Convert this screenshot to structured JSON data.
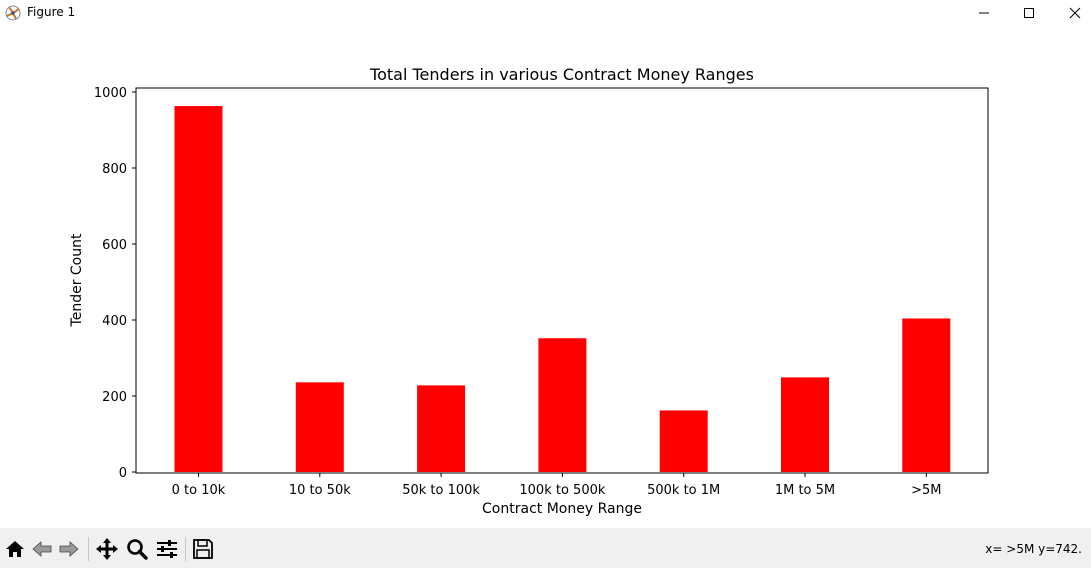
{
  "window": {
    "title": "Figure 1",
    "icons": [
      "matplotlib-icon",
      "minimize-icon",
      "maximize-icon",
      "close-icon"
    ]
  },
  "toolbar": {
    "buttons": [
      "home-icon",
      "back-icon",
      "forward-icon",
      "pan-icon",
      "zoom-icon",
      "configure-subplots-icon",
      "save-icon"
    ],
    "coords": "x= >5M y=742."
  },
  "colors": {
    "bar": "#ff0000",
    "toolbar_bg": "#f0f0f0"
  },
  "chart_data": {
    "type": "bar",
    "title": "Total Tenders in various Contract Money Ranges",
    "xlabel": "Contract Money Range",
    "ylabel": "Tender Count",
    "categories": [
      "0 to 10k",
      "10 to 50k",
      "50k to 100k",
      "100k to 500k",
      "500k to 1M",
      "1M to 5M",
      ">5M"
    ],
    "values": [
      963,
      236,
      228,
      352,
      162,
      249,
      404
    ],
    "ylim": [
      0,
      1000
    ],
    "yticks": [
      0,
      200,
      400,
      600,
      800,
      1000
    ],
    "grid": false,
    "legend": false
  }
}
